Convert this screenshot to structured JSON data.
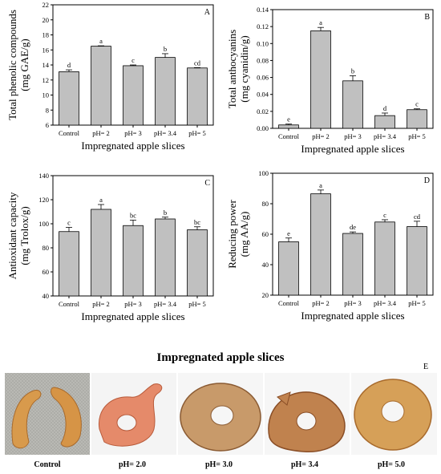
{
  "chart_data": [
    {
      "panel": "A",
      "type": "bar",
      "categories": [
        "Control",
        "pH= 2",
        "pH= 3",
        "pH= 3.4",
        "pH= 5"
      ],
      "values": [
        13.1,
        16.5,
        13.9,
        15.0,
        13.6
      ],
      "errors": [
        0.25,
        0.05,
        0.1,
        0.5,
        0.05
      ],
      "letters": [
        "d",
        "a",
        "c",
        "b",
        "cd"
      ],
      "ylabel_line1": "Total phenolic compounds",
      "ylabel_line2": "(mg GAE/g)",
      "xlabel": "Impregnated apple slices",
      "ylim": [
        6,
        22
      ],
      "yticks": [
        6,
        8,
        10,
        12,
        14,
        16,
        18,
        20,
        22
      ],
      "ytick_labels": [
        "6",
        "8",
        "10",
        "12",
        "14",
        "16",
        "18",
        "20",
        "22"
      ]
    },
    {
      "panel": "B",
      "type": "bar",
      "categories": [
        "Control",
        "pH= 2",
        "pH= 3",
        "pH= 3.4",
        "pH= 5"
      ],
      "values": [
        0.004,
        0.115,
        0.056,
        0.015,
        0.022
      ],
      "errors": [
        0.001,
        0.004,
        0.006,
        0.003,
        0.001
      ],
      "letters": [
        "e",
        "a",
        "b",
        "d",
        "c"
      ],
      "ylabel_line1": "Total anthocyanins",
      "ylabel_line2": "(mg cyanidin/g)",
      "xlabel": "Impregnated apple slices",
      "ylim": [
        0,
        0.14
      ],
      "yticks": [
        0,
        0.02,
        0.04,
        0.06,
        0.08,
        0.1,
        0.12,
        0.14
      ],
      "ytick_labels": [
        "0.00",
        "0.02",
        "0.04",
        "0.06",
        "0.08",
        "0.10",
        "0.12",
        "0.14"
      ]
    },
    {
      "panel": "C",
      "type": "bar",
      "categories": [
        "Control",
        "pH= 2",
        "pH= 3",
        "pH= 3.4",
        "pH= 5"
      ],
      "values": [
        93.5,
        112,
        98.5,
        104,
        95
      ],
      "errors": [
        3.5,
        4,
        4.5,
        1.5,
        2.5
      ],
      "letters": [
        "c",
        "a",
        "bc",
        "b",
        "bc"
      ],
      "ylabel_line1": "Antioxidant capacity",
      "ylabel_line2": "(mg Trolox/g)",
      "xlabel": "Impregnated apple slices",
      "ylim": [
        40,
        140
      ],
      "yticks": [
        40,
        60,
        80,
        100,
        120,
        140
      ],
      "ytick_labels": [
        "40",
        "60",
        "80",
        "100",
        "120",
        "140"
      ]
    },
    {
      "panel": "D",
      "type": "bar",
      "categories": [
        "Control",
        "pH= 2",
        "pH= 3",
        "pH= 3.4",
        "pH= 5"
      ],
      "values": [
        55,
        86.5,
        60.5,
        68,
        65
      ],
      "errors": [
        2.5,
        2.5,
        1,
        1.5,
        3.5
      ],
      "letters": [
        "e",
        "a",
        "de",
        "c",
        "cd"
      ],
      "ylabel_line1": "Reducing power",
      "ylabel_line2": "(mg AA/g)",
      "xlabel": "Impregnated apple slices",
      "ylim": [
        20,
        100
      ],
      "yticks": [
        20,
        40,
        60,
        80,
        100
      ],
      "ytick_labels": [
        "20",
        "40",
        "60",
        "80",
        "100"
      ]
    }
  ],
  "photos": {
    "title": "Impregnated apple slices",
    "panel": "E",
    "labels": [
      "Control",
      "pH= 2.0",
      "pH= 3.0",
      "pH= 3.4",
      "pH= 5.0"
    ],
    "colors": {
      "control": "#d89a4c",
      "ph20": "#e58a6a",
      "ph30": "#c89a6a",
      "ph34": "#c0824e",
      "ph50": "#d6a058",
      "bar": "#c0c0c0"
    }
  }
}
